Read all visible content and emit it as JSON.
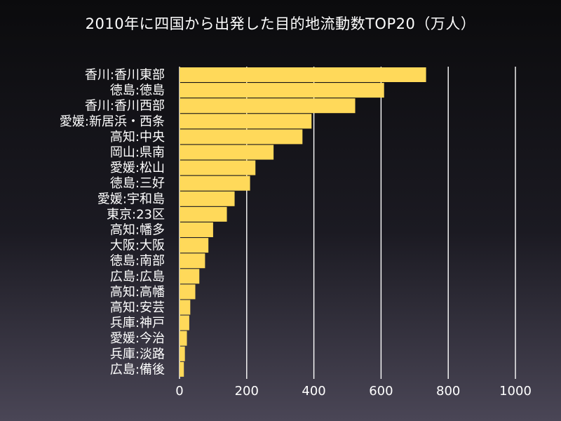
{
  "chart_data": {
    "type": "bar",
    "orientation": "horizontal",
    "title": "2010年に四国から出発した目的地流動数TOP20（万人）",
    "categories": [
      "香川:香川東部",
      "徳島:徳島",
      "香川:香川西部",
      "愛媛:新居浜・西条",
      "高知:中央",
      "岡山:県南",
      "愛媛:松山",
      "徳島:三好",
      "愛媛:宇和島",
      "東京:23区",
      "高知:幡多",
      "大阪:大阪",
      "徳島:南部",
      "広島:広島",
      "高知:高幡",
      "高知:安芸",
      "兵庫:神戸",
      "愛媛:今治",
      "兵庫:淡路",
      "広島:備後"
    ],
    "values": [
      734,
      609,
      523,
      393,
      366,
      280,
      226,
      210,
      164,
      141,
      100,
      86,
      76,
      59,
      47,
      32,
      29,
      22,
      16,
      13
    ],
    "xticks": [
      0,
      200,
      400,
      600,
      800,
      1000
    ],
    "xlim": [
      0,
      1000
    ],
    "grid": "vertical",
    "bar_color": "#ffd95a",
    "grid_color": "#ffffff"
  }
}
